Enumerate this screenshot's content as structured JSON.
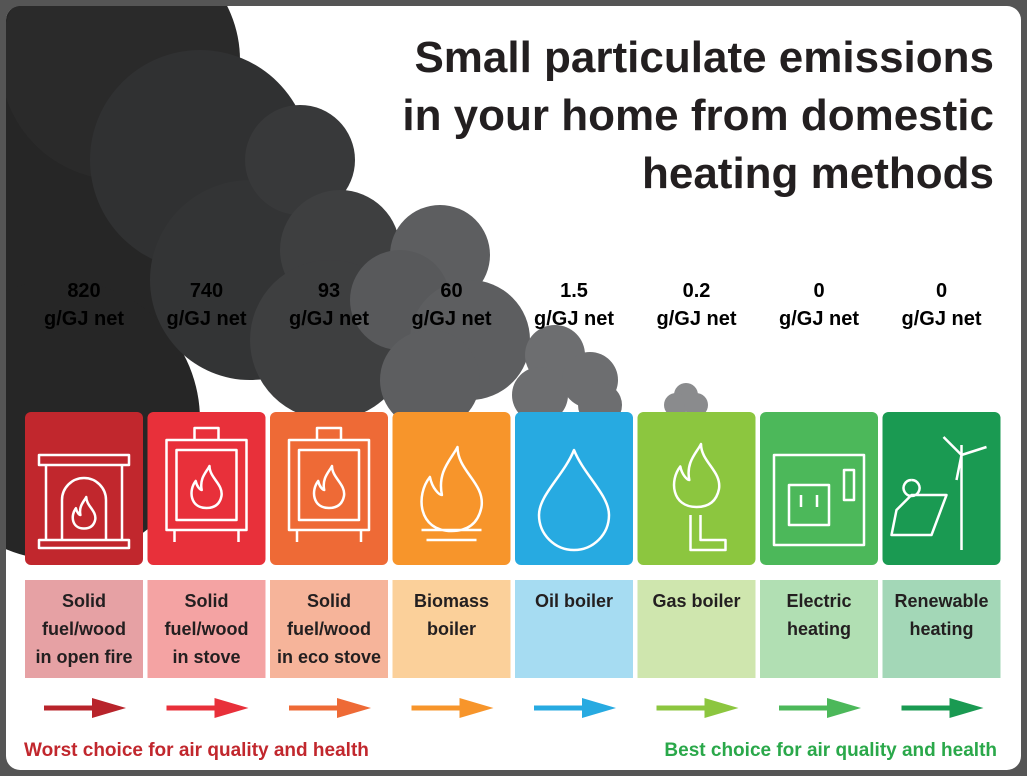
{
  "title": [
    "Small particulate emissions",
    "in your home from domestic",
    "heating methods"
  ],
  "items": [
    {
      "value": 820,
      "unit": "g/GJ net",
      "label": [
        "Solid",
        "fuel/wood",
        "in open fire"
      ],
      "tile_color": "#c1272d",
      "label_color": "#e6a1a4",
      "arrow_color": "#b8242b"
    },
    {
      "value": 740,
      "unit": "g/GJ net",
      "label": [
        "Solid",
        "fuel/wood",
        "in stove"
      ],
      "tile_color": "#e8303a",
      "label_color": "#f4a3a3",
      "arrow_color": "#e8303a"
    },
    {
      "value": 93,
      "unit": "g/GJ net",
      "label": [
        "Solid",
        "fuel/wood",
        "in eco stove"
      ],
      "tile_color": "#ee6a36",
      "label_color": "#f6b49a",
      "arrow_color": "#ee6a36"
    },
    {
      "value": 60,
      "unit": "g/GJ net",
      "label": [
        "Biomass",
        "boiler"
      ],
      "tile_color": "#f7952b",
      "label_color": "#fbd09a",
      "arrow_color": "#f7952b"
    },
    {
      "value": 1.5,
      "unit": "g/GJ net",
      "label": [
        "Oil boiler"
      ],
      "tile_color": "#27aae1",
      "label_color": "#a6dcf2",
      "arrow_color": "#27aae1"
    },
    {
      "value": 0.2,
      "unit": "g/GJ net",
      "label": [
        "Gas boiler"
      ],
      "tile_color": "#8cc63f",
      "label_color": "#cfe6ae",
      "arrow_color": "#8cc63f"
    },
    {
      "value": 0,
      "unit": "g/GJ net",
      "label": [
        "Electric",
        "heating"
      ],
      "tile_color": "#4cb85a",
      "label_color": "#b1dfb3",
      "arrow_color": "#4cb85a"
    },
    {
      "value": 0,
      "unit": "g/GJ net",
      "label": [
        "Renewable",
        "heating"
      ],
      "tile_color": "#1a9a52",
      "label_color": "#a3d7b7",
      "arrow_color": "#1a9a52"
    }
  ],
  "footer": {
    "worst": "Worst choice for air quality and health",
    "worst_color": "#c1272d",
    "best": "Best choice for air quality and health",
    "best_color": "#2aa84a"
  }
}
